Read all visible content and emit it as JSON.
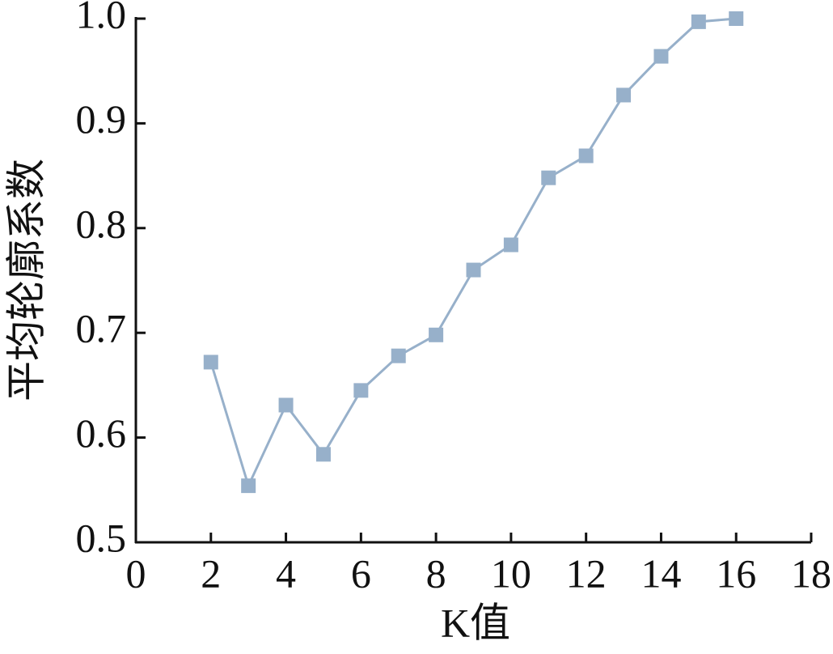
{
  "chart_data": {
    "type": "line",
    "xlabel": "K值",
    "ylabel": "平均轮廓系数",
    "x": [
      2,
      3,
      4,
      5,
      6,
      7,
      8,
      9,
      10,
      11,
      12,
      13,
      14,
      15,
      16
    ],
    "series": [
      {
        "color": "#97b0ca",
        "values": [
          0.672,
          0.554,
          0.631,
          0.584,
          0.645,
          0.678,
          0.698,
          0.76,
          0.784,
          0.848,
          0.869,
          0.927,
          0.964,
          0.997,
          1.0
        ]
      }
    ],
    "xlim": [
      0,
      18
    ],
    "xticks": [
      0,
      2,
      4,
      6,
      8,
      10,
      12,
      14,
      16,
      18
    ],
    "ylim": [
      0.5,
      1.0
    ],
    "yticks": [
      {
        "value": 0.5,
        "label": "0.5"
      },
      {
        "value": 0.6,
        "label": "0.6"
      },
      {
        "value": 0.7,
        "label": "0.7"
      },
      {
        "value": 0.8,
        "label": "0.8"
      },
      {
        "value": 0.9,
        "label": "0.9"
      },
      {
        "value": 1.0,
        "label": "1.0"
      }
    ]
  }
}
